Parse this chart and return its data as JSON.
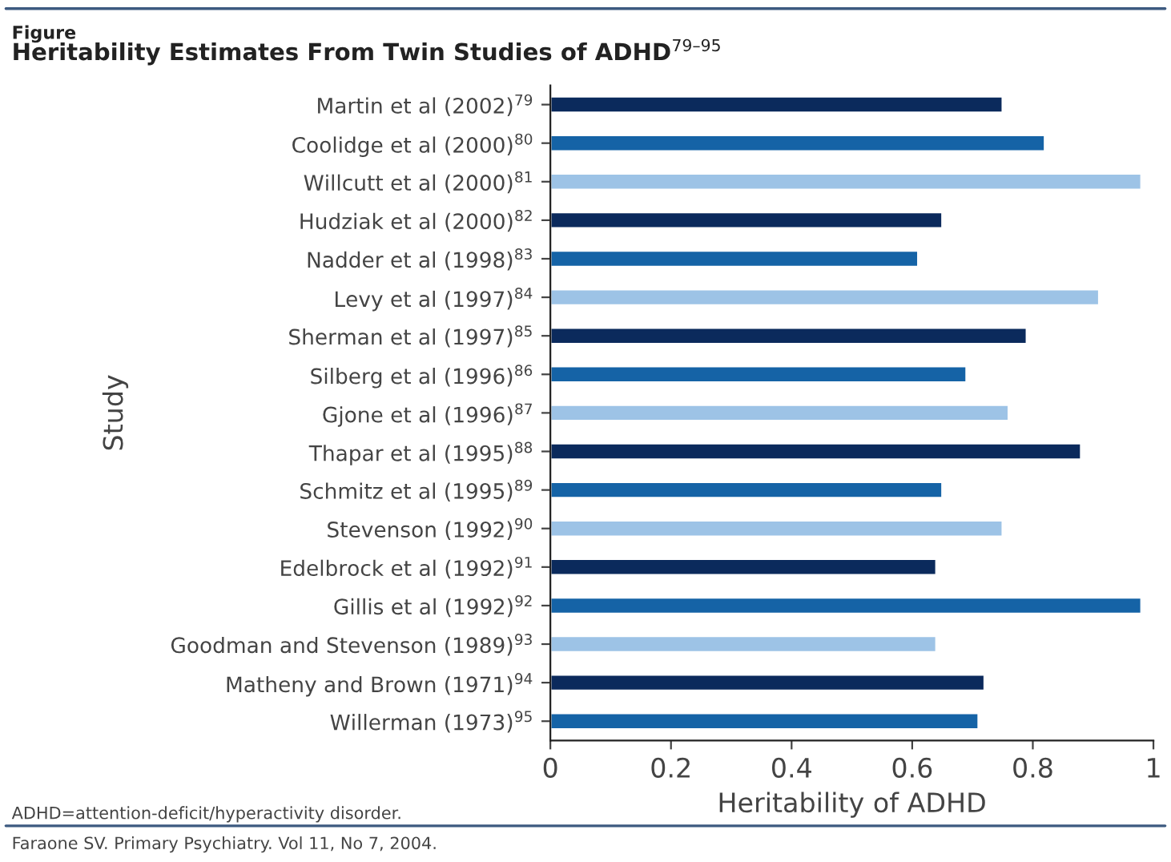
{
  "chart_data": {
    "type": "bar",
    "orientation": "horizontal",
    "subtitle": "Figure",
    "title": "Heritability Estimates From Twin Studies of ADHD$^{79–95}$",
    "xlabel": "Heritability of ADHD",
    "ylabel": "Study",
    "categories": [
      "Martin et al (2002)$^{79}$",
      "Coolidge et al (2000)$^{80}$",
      "Willcutt et al (2000)$^{81}$",
      "Hudziak et al (2000)$^{82}$",
      "Nadder et al (1998)$^{83}$",
      "Levy et al (1997)$^{84}$",
      "Sherman et al (1997)$^{85}$",
      "Silberg et al (1996)$^{86}$",
      "Gjone et al (1996)$^{87}$",
      "Thapar et al (1995)$^{88}$",
      "Schmitz et al (1995)$^{89}$",
      "Stevenson (1992)$^{90}$",
      "Edelbrock et al (1992)$^{91}$",
      "Gillis et al (1992)$^{92}$",
      "Goodman and Stevenson (1989)$^{93}$",
      "Matheny and Brown (1971)$^{94}$",
      "Willerman (1973)$^{95}$"
    ],
    "values": [
      0.75,
      0.82,
      0.98,
      0.65,
      0.61,
      0.91,
      0.79,
      0.69,
      0.76,
      0.88,
      0.65,
      0.75,
      0.64,
      0.98,
      0.64,
      0.72,
      0.71
    ],
    "colors": [
      "#0b2a5c",
      "#1563a6",
      "#9dc3e6",
      "#0b2a5c",
      "#1563a6",
      "#9dc3e6",
      "#0b2a5c",
      "#1563a6",
      "#9dc3e6",
      "#0b2a5c",
      "#1563a6",
      "#9dc3e6",
      "#0b2a5c",
      "#1563a6",
      "#9dc3e6",
      "#0b2a5c",
      "#1563a6"
    ],
    "xlim": [
      0,
      1
    ],
    "xticks": [
      0,
      0.2,
      0.4,
      0.6,
      0.8,
      1
    ],
    "grid": false,
    "legend": false,
    "annotations": [
      "ADHD=attention-deficit/hyperactivity disorder.",
      "Faraone SV. Primary Psychiatry. Vol 11, No 7, 2004."
    ]
  }
}
